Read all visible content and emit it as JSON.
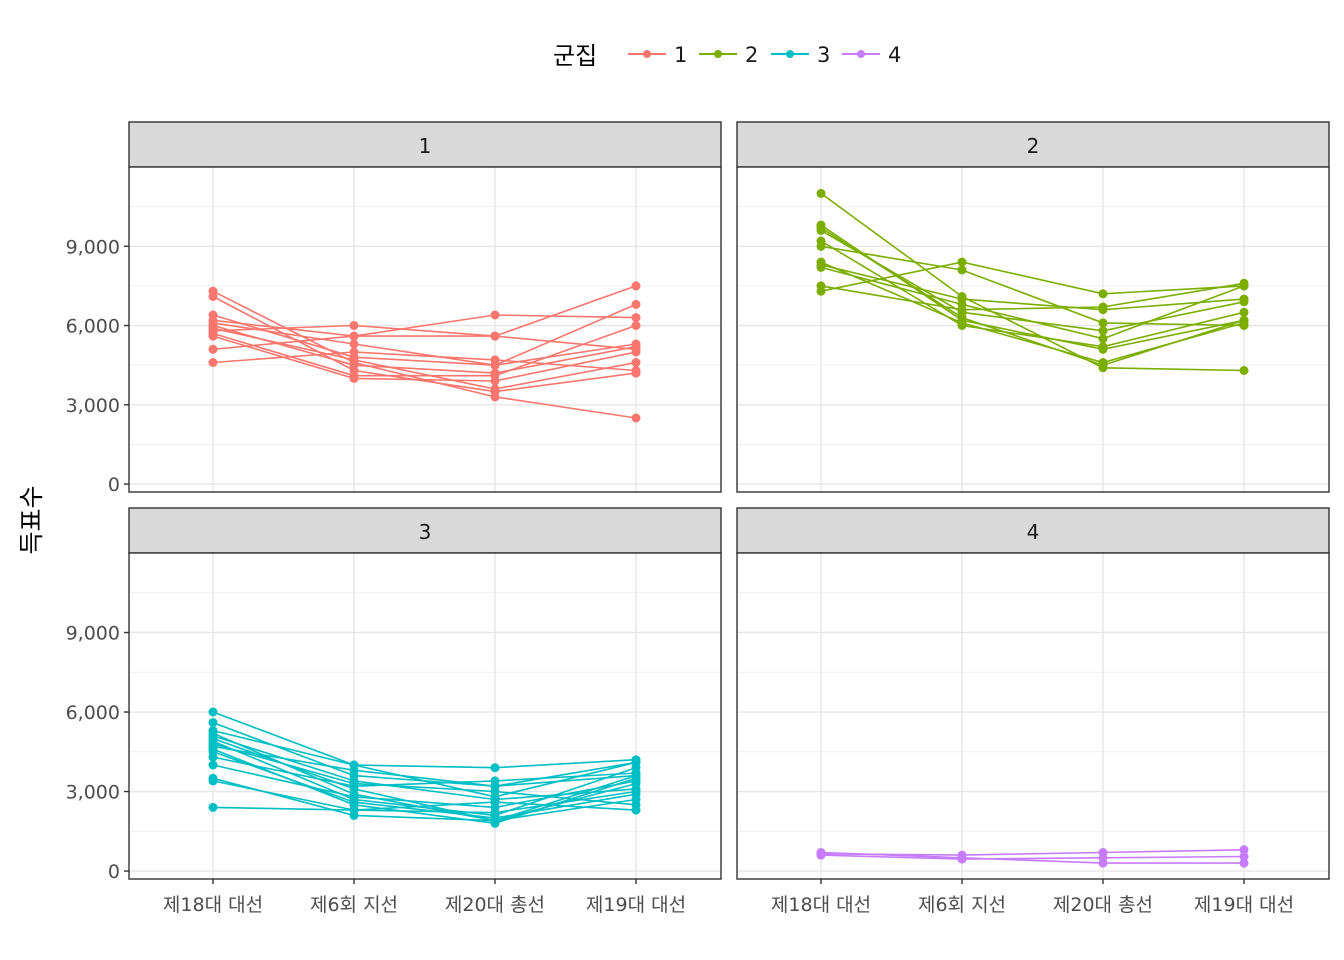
{
  "chart_data": {
    "type": "line",
    "facet_by": "군집",
    "ylabel": "득표수",
    "xlabel": "",
    "x_categories": [
      "제18대 대선",
      "제6회 지선",
      "제20대 총선",
      "제19대 대선"
    ],
    "y_ticks": [
      0,
      3000,
      6000,
      9000
    ],
    "y_tick_labels": [
      "0",
      "3,000",
      "6,000",
      "9,000"
    ],
    "ylim": [
      -300,
      12000
    ],
    "grid": true,
    "legend": {
      "title": "군집",
      "position": "top",
      "items": [
        {
          "label": "1",
          "color": "#F8766D"
        },
        {
          "label": "2",
          "color": "#7CAE00"
        },
        {
          "label": "3",
          "color": "#00BFC4"
        },
        {
          "label": "4",
          "color": "#C77CFF"
        }
      ]
    },
    "panels": [
      {
        "label": "1",
        "color": "#F8766D",
        "lines": [
          [
            7300,
            4600,
            3300,
            2500
          ],
          [
            7100,
            4300,
            3500,
            4200
          ],
          [
            6400,
            4800,
            4500,
            5300
          ],
          [
            6200,
            5600,
            5600,
            7500
          ],
          [
            6100,
            5300,
            4500,
            6800
          ],
          [
            5900,
            4700,
            3600,
            4600
          ],
          [
            5800,
            6000,
            5600,
            5100
          ],
          [
            5700,
            4100,
            4100,
            6000
          ],
          [
            5600,
            4000,
            3900,
            5000
          ],
          [
            5100,
            5600,
            6400,
            6300
          ],
          [
            4600,
            5000,
            4700,
            4300
          ],
          [
            6000,
            4500,
            4200,
            5200
          ]
        ]
      },
      {
        "label": "2",
        "color": "#7CAE00",
        "lines": [
          [
            11000,
            7100,
            4400,
            4300
          ],
          [
            9700,
            6300,
            4500,
            6200
          ],
          [
            9600,
            6500,
            5800,
            6900
          ],
          [
            9200,
            6000,
            5200,
            6500
          ],
          [
            9000,
            8100,
            6100,
            6000
          ],
          [
            8400,
            6100,
            4600,
            6100
          ],
          [
            8200,
            6800,
            5500,
            7500
          ],
          [
            7500,
            6600,
            6700,
            7600
          ],
          [
            7300,
            8400,
            7200,
            7500
          ],
          [
            9800,
            6200,
            5100,
            6200
          ],
          [
            8300,
            7000,
            6600,
            7000
          ]
        ]
      },
      {
        "label": "3",
        "color": "#00BFC4",
        "lines": [
          [
            6000,
            4000,
            3900,
            4200
          ],
          [
            5600,
            3600,
            3200,
            4100
          ],
          [
            5200,
            2900,
            1900,
            3300
          ],
          [
            5100,
            3400,
            2700,
            3100
          ],
          [
            5000,
            3100,
            1900,
            3600
          ],
          [
            4900,
            2700,
            2100,
            3900
          ],
          [
            4800,
            3300,
            3000,
            2500
          ],
          [
            4700,
            3800,
            3200,
            3600
          ],
          [
            4500,
            2600,
            2000,
            2900
          ],
          [
            4300,
            3200,
            3400,
            3700
          ],
          [
            4000,
            2800,
            2400,
            3400
          ],
          [
            3500,
            2100,
            1900,
            2700
          ],
          [
            3400,
            2300,
            2200,
            3000
          ],
          [
            2400,
            2300,
            2600,
            2300
          ],
          [
            4600,
            2500,
            1800,
            3500
          ],
          [
            5300,
            4000,
            2800,
            4100
          ]
        ]
      },
      {
        "label": "4",
        "color": "#C77CFF",
        "lines": [
          [
            700,
            500,
            300,
            300
          ],
          [
            650,
            600,
            700,
            800
          ],
          [
            600,
            450,
            500,
            550
          ]
        ]
      }
    ]
  }
}
